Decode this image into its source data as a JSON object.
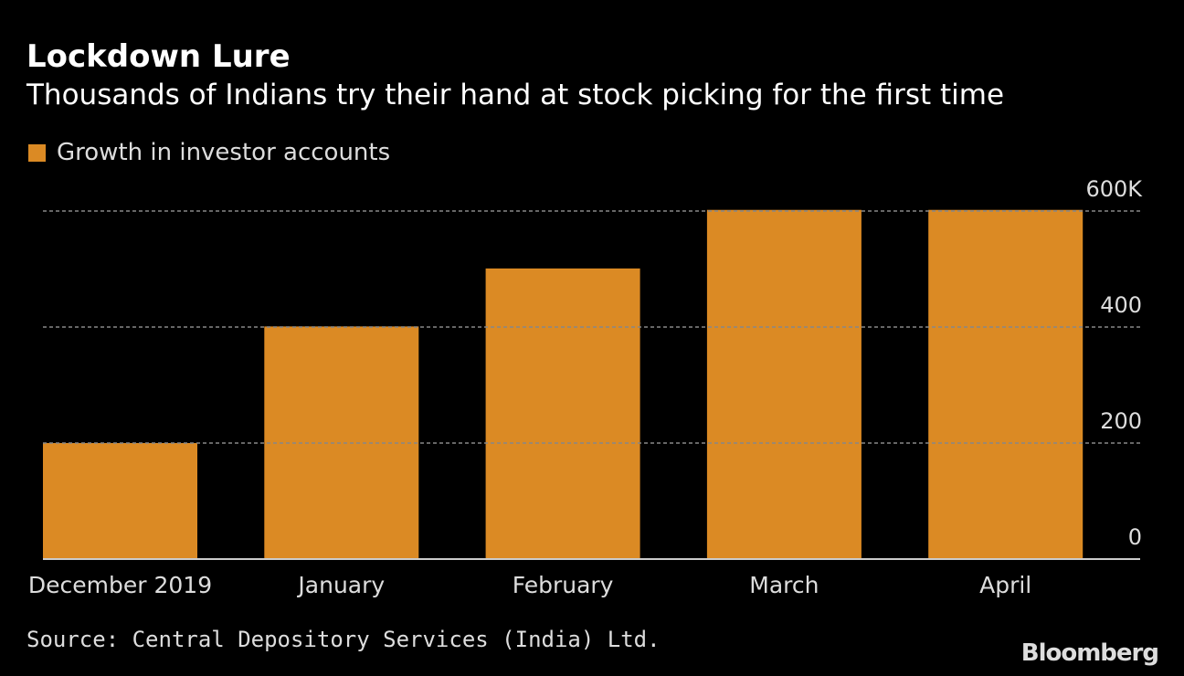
{
  "chart_data": {
    "type": "bar",
    "title": "Lockdown Lure",
    "subtitle": "Thousands of Indians try their hand at stock picking for the first time",
    "categories": [
      "December 2019",
      "January",
      "February",
      "March",
      "April"
    ],
    "series": [
      {
        "name": "Growth in investor accounts",
        "values": [
          200,
          401,
          501,
          602,
          602
        ]
      }
    ],
    "ylim": [
      0,
      600
    ],
    "yticks": [
      0,
      200,
      400,
      600
    ],
    "ytick_labels": [
      "0",
      "200",
      "400",
      "600K"
    ],
    "y_axis_side": "right",
    "grid": true,
    "legend_position": "top-left",
    "bar_color": "#db8a24",
    "source": "Source: Central Depository Services (India) Ltd.",
    "brand": "Bloomberg"
  }
}
